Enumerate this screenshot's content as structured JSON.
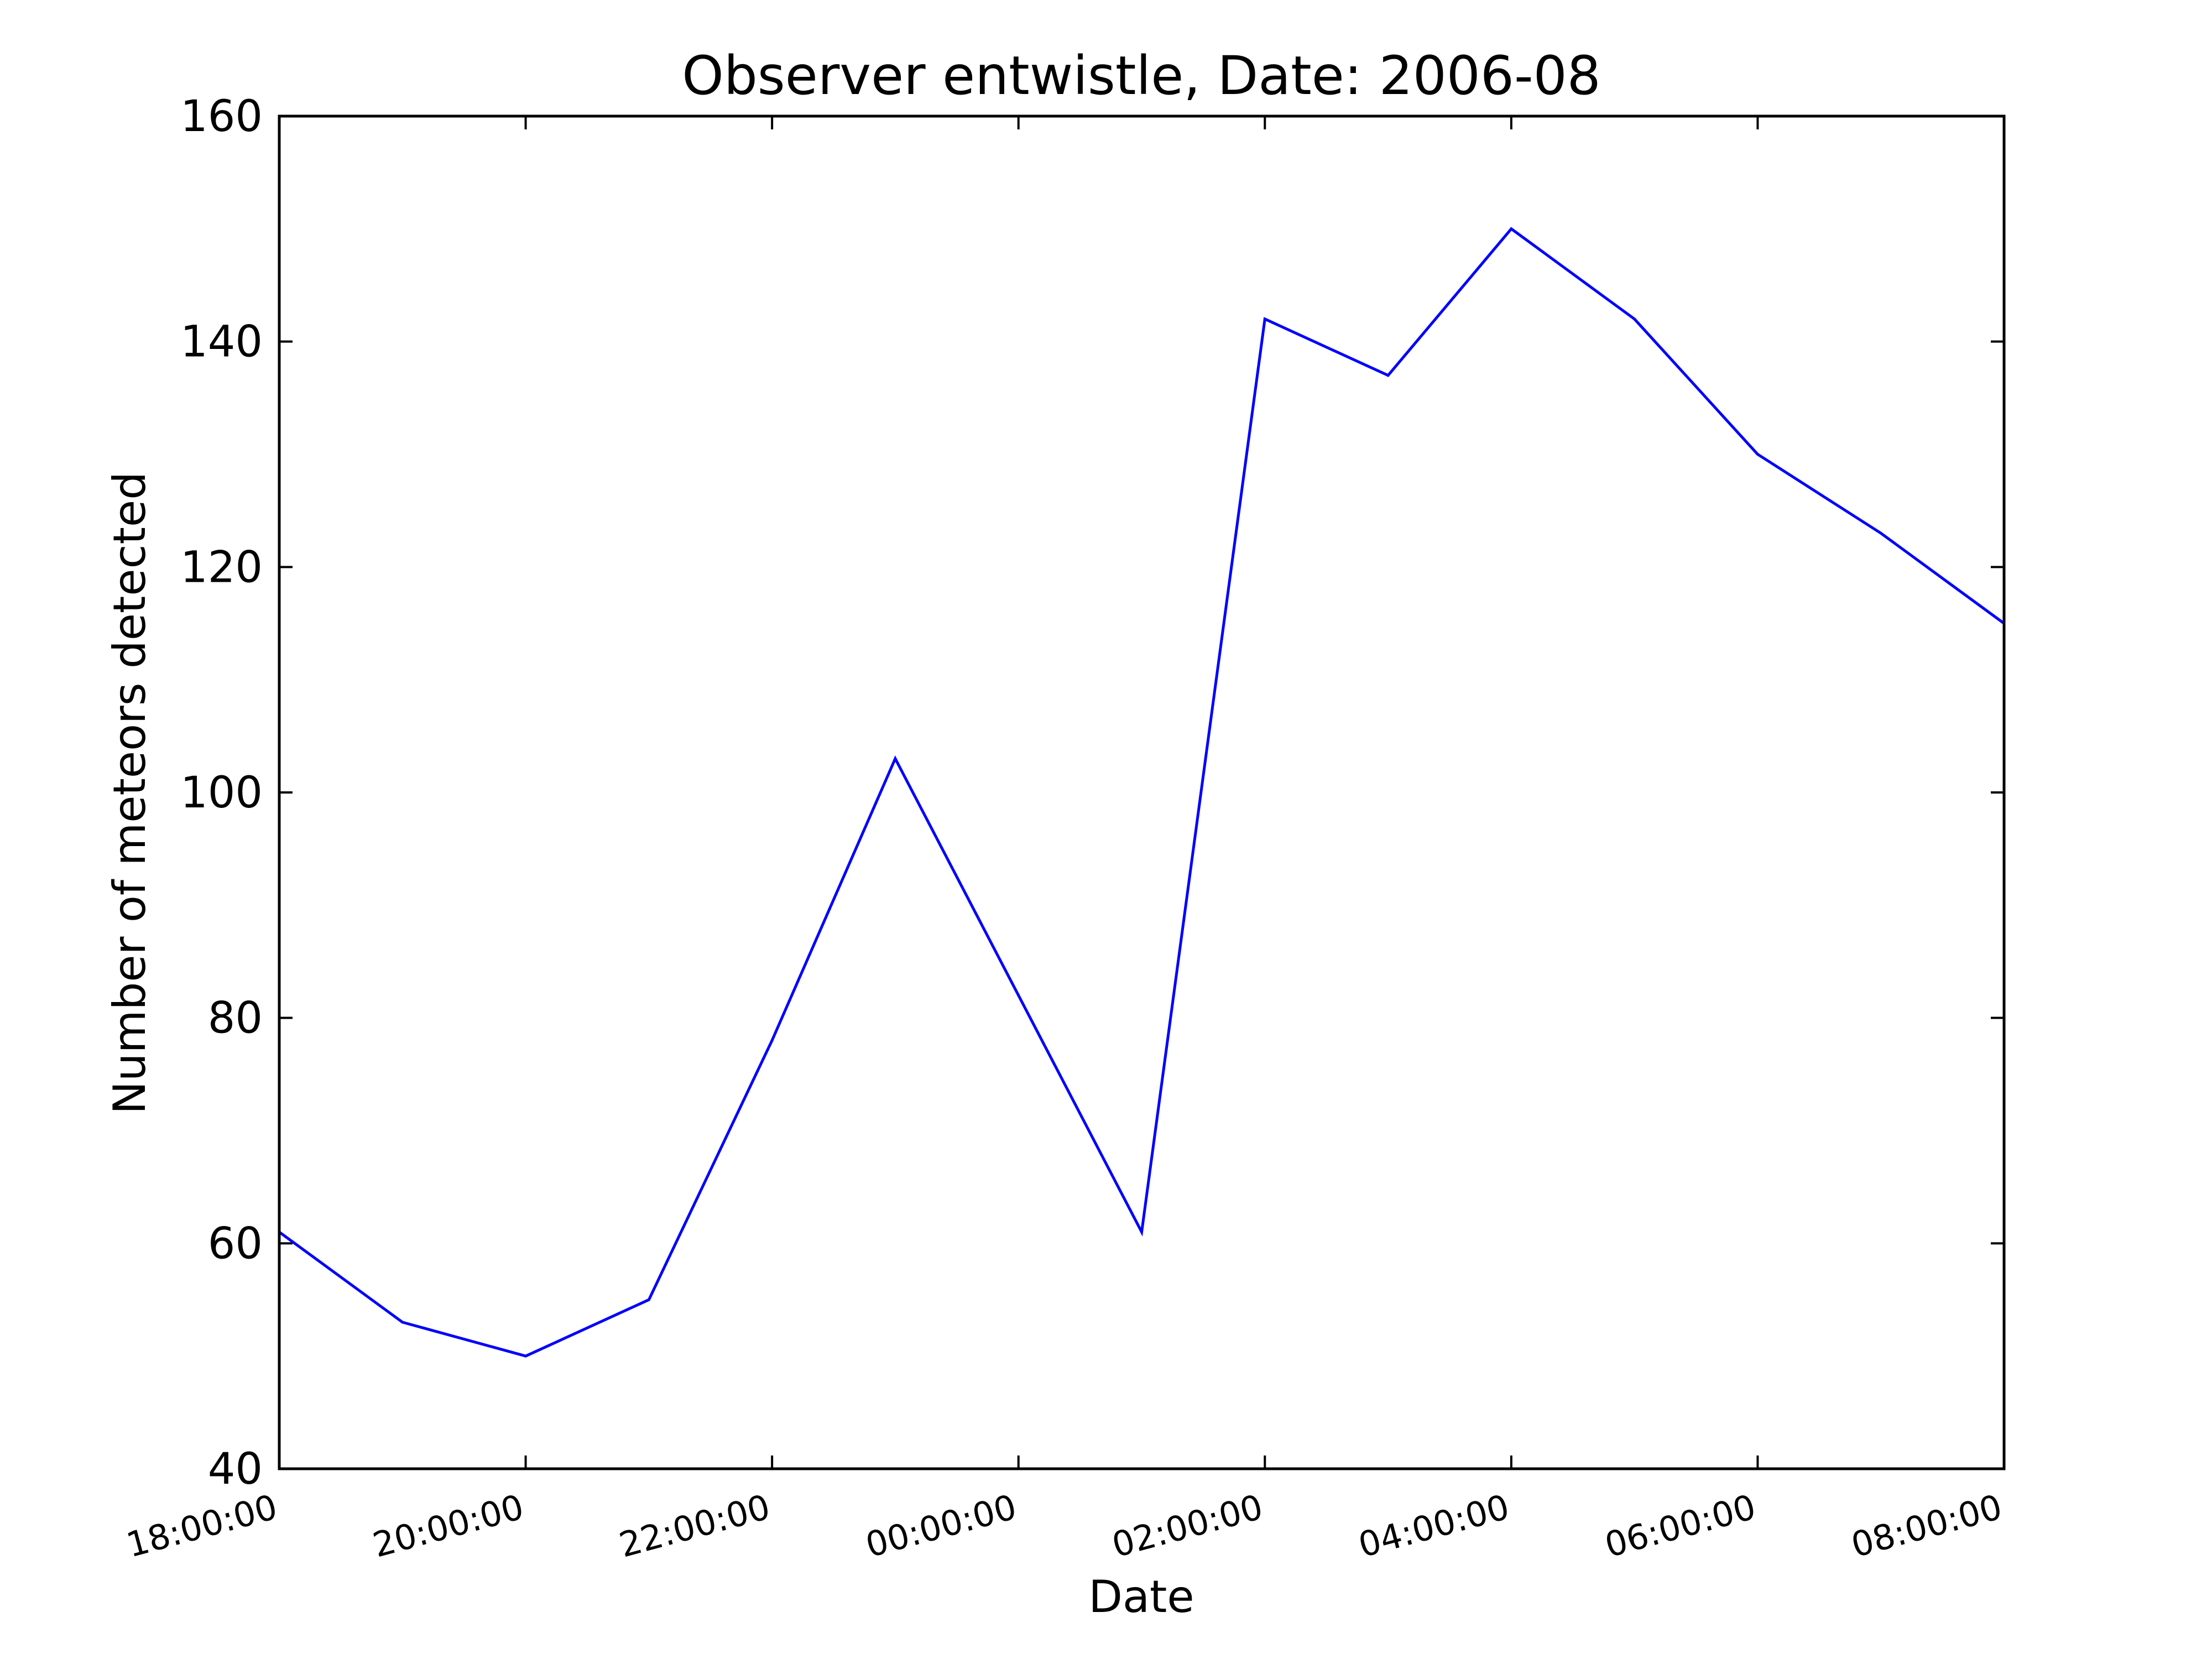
{
  "chart_data": {
    "type": "line",
    "title": "Observer entwistle, Date: 2006-08",
    "xlabel": "Date",
    "ylabel": "Number of meteors detected",
    "ylim": [
      40,
      160
    ],
    "xlim": [
      "18:00:00",
      "08:00:00"
    ],
    "y_ticks": [
      "40",
      "60",
      "80",
      "100",
      "120",
      "140",
      "160"
    ],
    "x_tick_labels": [
      "18:00:00",
      "20:00:00",
      "22:00:00",
      "00:00:00",
      "02:00:00",
      "04:00:00",
      "06:00:00",
      "08:00:00"
    ],
    "x": [
      "18:00",
      "19:00",
      "20:00",
      "21:00",
      "22:00",
      "23:00",
      "00:00",
      "01:00",
      "02:00",
      "03:00",
      "04:00",
      "05:00",
      "06:00",
      "07:00",
      "08:00"
    ],
    "series": [
      {
        "color": "#0000ff",
        "values": [
          61,
          53,
          50,
          55,
          78,
          103,
          82,
          61,
          142,
          137,
          150,
          142,
          130,
          123,
          115
        ]
      }
    ],
    "grid": false,
    "legend": "none"
  }
}
